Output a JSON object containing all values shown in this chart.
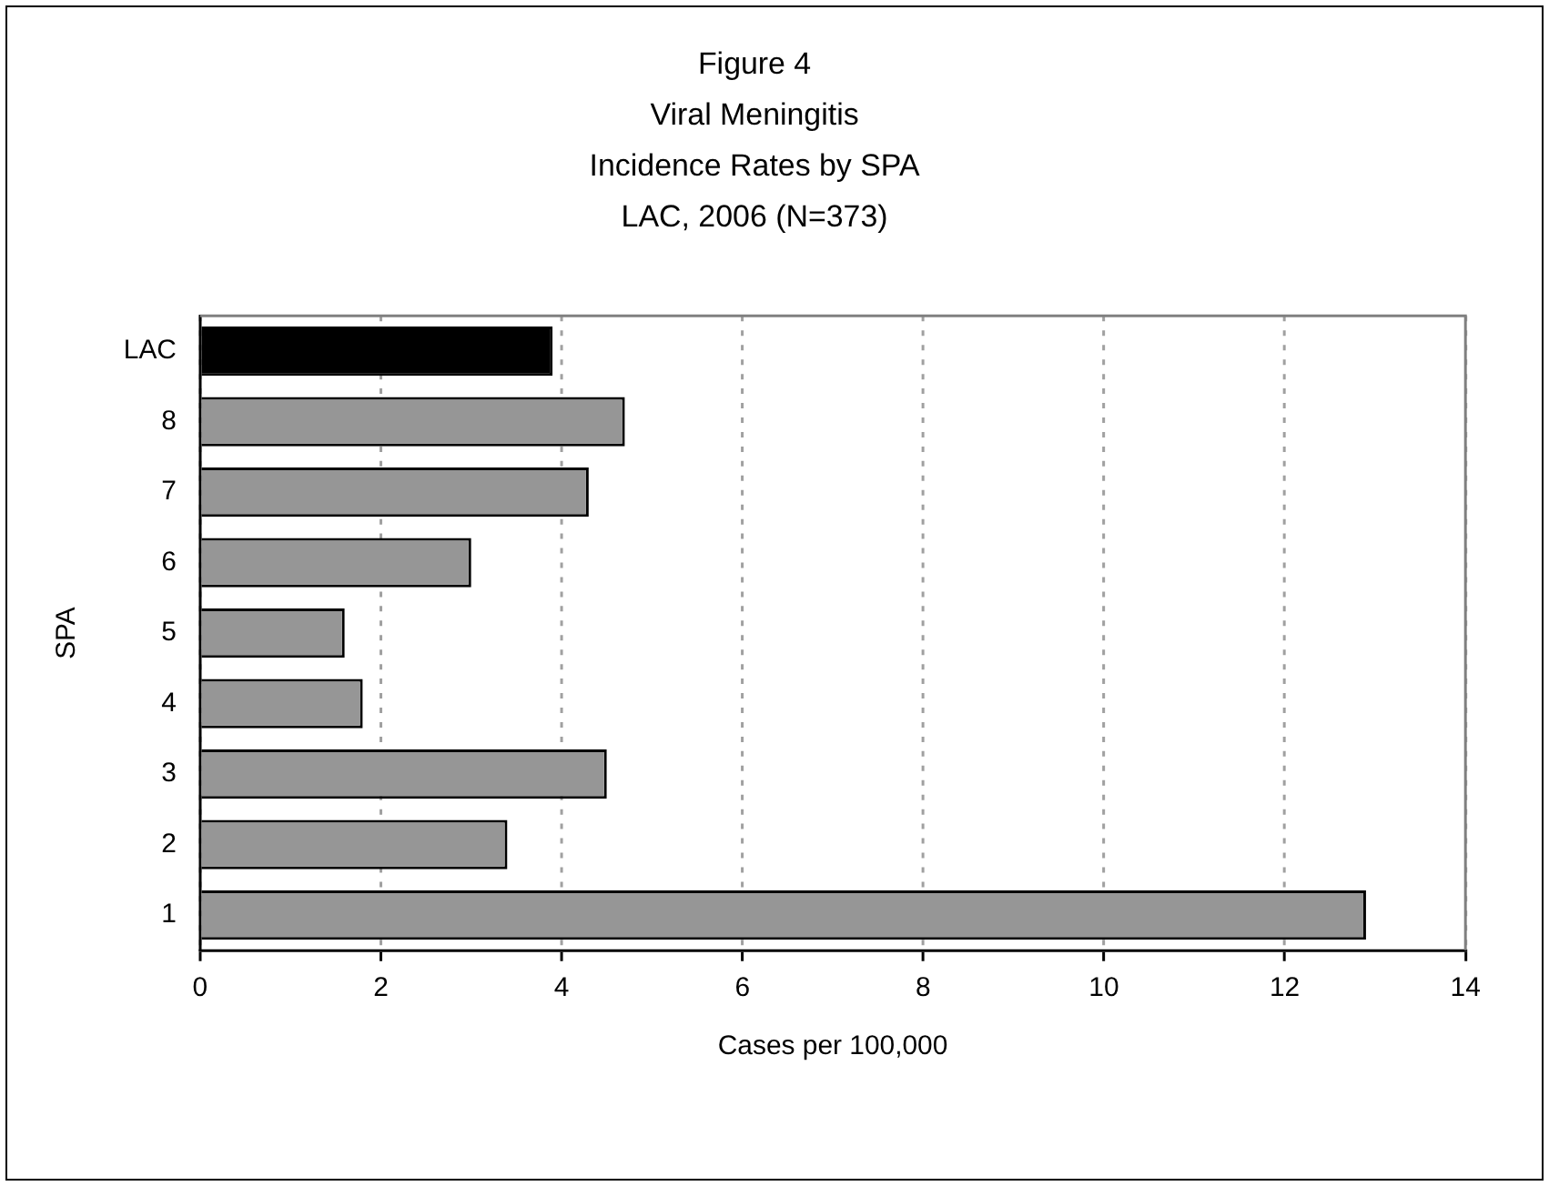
{
  "chart_data": {
    "type": "bar",
    "orientation": "horizontal",
    "title": "Figure 4\nViral Meningitis\nIncidence Rates by SPA\nLAC, 2006 (N=373)",
    "xlabel": "Cases per 100,000",
    "ylabel": "SPA",
    "categories": [
      "LAC",
      "8",
      "7",
      "6",
      "5",
      "4",
      "3",
      "2",
      "1"
    ],
    "values": [
      3.9,
      4.7,
      4.3,
      3.0,
      1.6,
      1.8,
      4.5,
      3.4,
      12.9
    ],
    "colors": [
      "#000000",
      "#969696",
      "#969696",
      "#969696",
      "#969696",
      "#969696",
      "#969696",
      "#969696",
      "#969696"
    ],
    "xlim": [
      0,
      14
    ],
    "xticks": [
      0,
      2,
      4,
      6,
      8,
      10,
      12,
      14
    ],
    "grid": "x",
    "legend": false
  }
}
